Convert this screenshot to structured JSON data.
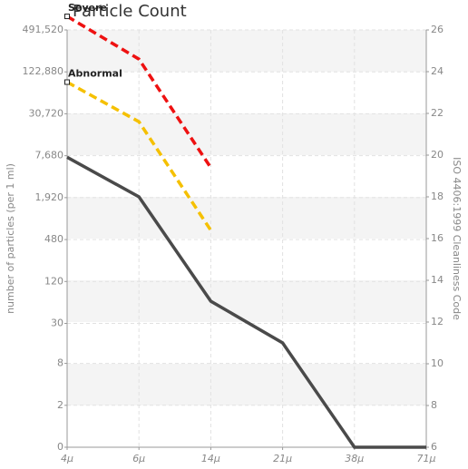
{
  "chart_data": {
    "type": "line",
    "title": "Particle Count",
    "ylabel": "number of particles (per 1 ml)",
    "y2label": "ISO 4406:1999 Cleanliness Code",
    "categories": [
      "4μ",
      "6μ",
      "14μ",
      "21μ",
      "38μ",
      "71μ"
    ],
    "yscale": "log",
    "ylim": [
      0.5,
      491520
    ],
    "yticks": [
      0,
      2,
      8,
      30,
      120,
      480,
      {
        "value": 1920,
        "label": "1,920"
      },
      {
        "value": 7680,
        "label": "7,680"
      },
      {
        "value": 30720,
        "label": "30,720"
      },
      {
        "value": 122880,
        "label": "122,880"
      },
      {
        "value": 491520,
        "label": "491,520"
      }
    ],
    "y2lim": [
      6,
      26
    ],
    "y2ticks": [
      6,
      8,
      10,
      12,
      14,
      16,
      18,
      20,
      22,
      24,
      26
    ],
    "grid": true,
    "series": [
      {
        "name": "Severe",
        "color": "#ee1111",
        "dashed": true,
        "axis": "y2",
        "values": [
          26.65,
          24.6,
          19.4,
          null,
          null,
          null
        ]
      },
      {
        "name": "Abnormal",
        "color": "#f5c000",
        "dashed": true,
        "axis": "y2",
        "values": [
          23.5,
          21.6,
          16.4,
          null,
          null,
          null
        ]
      },
      {
        "color": "#4a4a4a",
        "dashed": false,
        "axis": "y2",
        "values": [
          19.9,
          18,
          13,
          11,
          6,
          6
        ]
      }
    ]
  }
}
